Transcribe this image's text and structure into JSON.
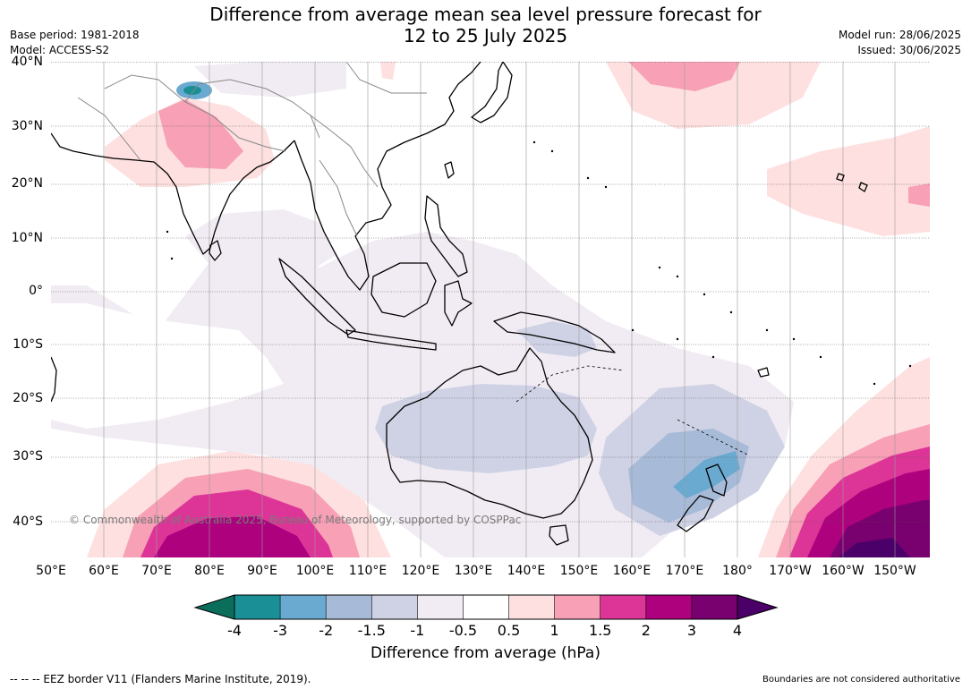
{
  "title": {
    "line1": "Difference from average mean sea level pressure forecast for",
    "line2": "12 to 25 July 2025"
  },
  "meta": {
    "base_period": "Base period: 1981-2018",
    "model": "Model: ACCESS-S2",
    "model_run": "Model run: 28/06/2025",
    "issued": "Issued: 30/06/2025"
  },
  "map": {
    "lat_labels": [
      "40°N",
      "30°N",
      "20°N",
      "10°N",
      "0°",
      "10°S",
      "20°S",
      "30°S",
      "40°S"
    ],
    "lon_labels": [
      "50°E",
      "60°E",
      "70°E",
      "80°E",
      "90°E",
      "100°E",
      "110°E",
      "120°E",
      "130°E",
      "140°E",
      "150°E",
      "160°E",
      "170°E",
      "180°",
      "170°W",
      "160°W",
      "150°W"
    ],
    "copyright": "© Commonwealth of Australia 2025, Bureau of Meteorology, supported by COSPPac"
  },
  "legend": {
    "ticks": [
      "-4",
      "-3",
      "-2",
      "-1.5",
      "-1",
      "-0.5",
      "0.5",
      "1",
      "1.5",
      "2",
      "3",
      "4"
    ],
    "colors": [
      "#1a8f96",
      "#6aaad0",
      "#a7bbd8",
      "#cfd2e5",
      "#f1ecf3",
      "#ffffff",
      "#fde0df",
      "#f7a0b6",
      "#dd3597",
      "#ad017e",
      "#78006f"
    ],
    "under_color": "#0b6e5b",
    "over_color": "#4a0068",
    "label": "Difference from average (hPa)"
  },
  "footer": {
    "eez_note": "--  --  -- EEZ border V11 (Flanders Marine Institute, 2019).",
    "boundaries_note": "Boundaries are not considered authoritative"
  }
}
